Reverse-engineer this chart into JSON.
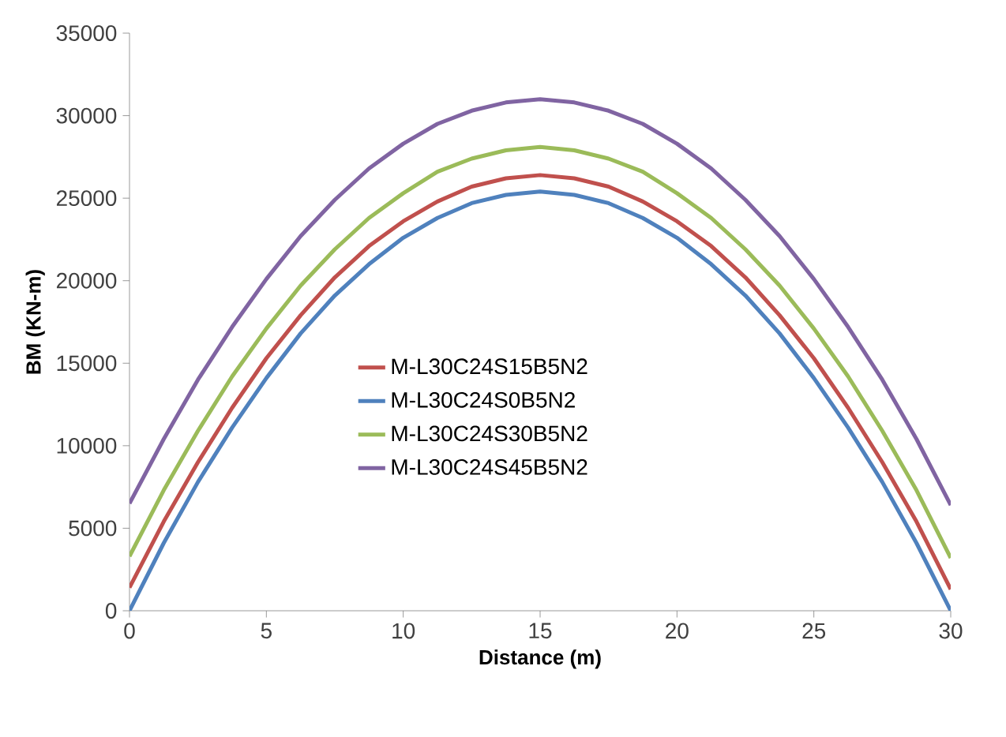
{
  "chart_data": {
    "type": "line",
    "xlabel": "Distance (m)",
    "ylabel": "BM (KN-m)",
    "x": [
      0,
      1.25,
      2.5,
      3.75,
      5,
      6.25,
      7.5,
      8.75,
      10,
      11.25,
      12.5,
      13.75,
      15,
      16.25,
      17.5,
      18.75,
      20,
      21.25,
      22.5,
      23.75,
      25,
      26.25,
      27.5,
      28.75,
      30
    ],
    "series": [
      {
        "name": "M-L30C24S15B5N2",
        "color": "#c0504d",
        "values": [
          1400,
          5400,
          9000,
          12300,
          15300,
          17900,
          20200,
          22100,
          23600,
          24800,
          25700,
          26200,
          26400,
          26200,
          25700,
          24800,
          23600,
          22100,
          20200,
          17900,
          15300,
          12300,
          9000,
          5400,
          1300
        ]
      },
      {
        "name": "M-L30C24S0B5N2",
        "color": "#4f81bd",
        "values": [
          0,
          4100,
          7800,
          11100,
          14100,
          16800,
          19100,
          21000,
          22600,
          23800,
          24700,
          25200,
          25400,
          25200,
          24700,
          23800,
          22600,
          21000,
          19100,
          16800,
          14100,
          11100,
          7800,
          4100,
          0
        ]
      },
      {
        "name": "M-L30C24S30B5N2",
        "color": "#9bbb59",
        "values": [
          3300,
          7300,
          10900,
          14200,
          17100,
          19700,
          21900,
          23800,
          25300,
          26600,
          27400,
          27900,
          28100,
          27900,
          27400,
          26600,
          25300,
          23800,
          21900,
          19700,
          17100,
          14200,
          10900,
          7300,
          3200
        ]
      },
      {
        "name": "M-L30C24S45B5N2",
        "color": "#8064a2",
        "values": [
          6500,
          10400,
          14000,
          17200,
          20100,
          22700,
          24900,
          26800,
          28300,
          29500,
          30300,
          30800,
          31000,
          30800,
          30300,
          29500,
          28300,
          26800,
          24900,
          22700,
          20100,
          17200,
          14000,
          10400,
          6400
        ]
      }
    ],
    "xlim": [
      0,
      30
    ],
    "xticks": [
      0,
      5,
      10,
      15,
      20,
      25,
      30
    ],
    "ylim": [
      0,
      35000
    ],
    "yticks": [
      0,
      5000,
      10000,
      15000,
      20000,
      25000,
      30000,
      35000
    ],
    "grid": false,
    "legend": "center",
    "marker": "none",
    "line_style": "solid"
  }
}
